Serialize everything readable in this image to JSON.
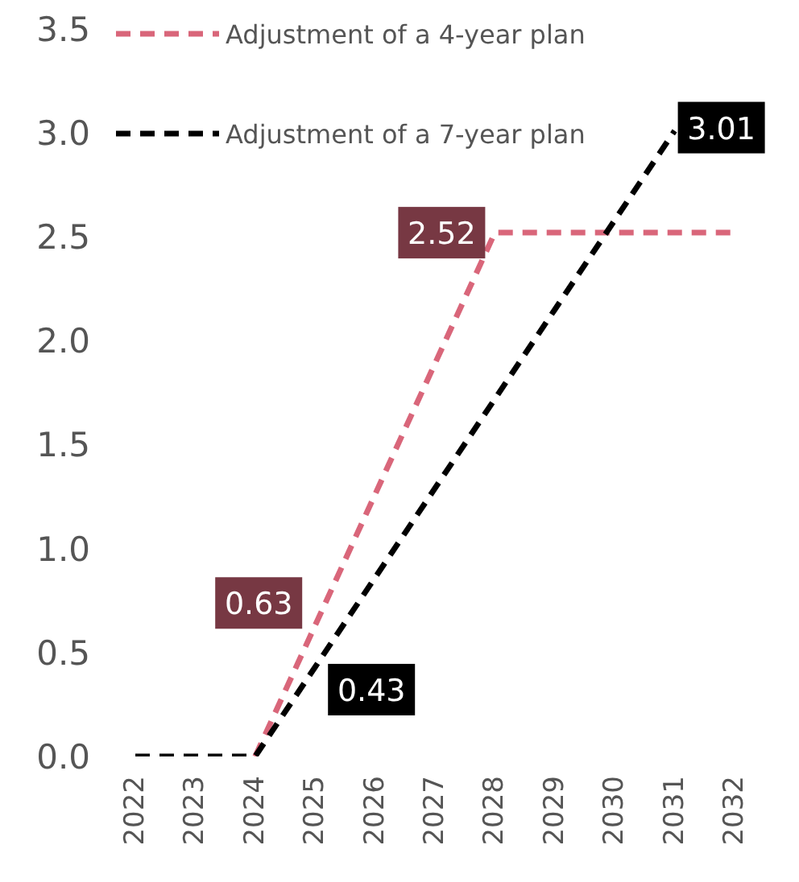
{
  "chart_data": {
    "type": "line",
    "categories": [
      "2022",
      "2023",
      "2024",
      "2025",
      "2026",
      "2027",
      "2028",
      "2029",
      "2030",
      "2031",
      "2032"
    ],
    "series": [
      {
        "name": "Adjustment of a 4-year plan",
        "color": "#d9667a",
        "values": [
          null,
          null,
          0,
          0.63,
          1.26,
          1.89,
          2.52,
          2.52,
          2.52,
          2.52,
          2.52
        ],
        "value_labels": [
          null,
          null,
          null,
          "0.63",
          null,
          null,
          "2.52",
          null,
          null,
          null,
          null
        ]
      },
      {
        "name": "Adjustment of a 7-year plan",
        "color": "#000000",
        "values": [
          0,
          0,
          0,
          0.43,
          0.86,
          1.29,
          1.72,
          2.15,
          2.58,
          3.01,
          null
        ],
        "value_labels": [
          null,
          null,
          null,
          "0.43",
          null,
          null,
          null,
          null,
          null,
          "3.01",
          null
        ]
      }
    ],
    "ylim": [
      0,
      3.5
    ],
    "yticks": [
      {
        "value": 0,
        "label": "0.0"
      },
      0.5,
      {
        "value": 1,
        "label": "1.0"
      },
      1.5,
      {
        "value": 2,
        "label": "2.0"
      },
      2.5,
      {
        "value": 3,
        "label": "3.0"
      },
      3.5
    ],
    "grid": false,
    "legend": "top left",
    "line_style": "dashed",
    "marker": "none"
  }
}
